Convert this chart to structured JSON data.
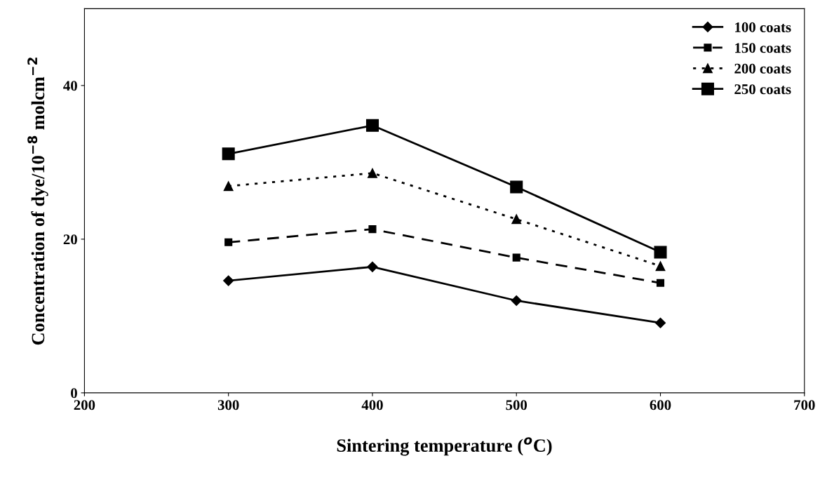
{
  "chart_data": {
    "type": "line",
    "xlabel": "Sintering temperature ($^{o}$C)",
    "ylabel": "Concentration of dye/10$^{−8}$ molcm$^{−2}$",
    "x": [
      300,
      400,
      500,
      600
    ],
    "xlim": [
      200,
      700
    ],
    "xticks": [
      200,
      300,
      400,
      500,
      600,
      700
    ],
    "ylim": [
      0,
      50
    ],
    "yticks": [
      0,
      20,
      40
    ],
    "grid": false,
    "legend": "top right",
    "series": [
      {
        "name": "100 coats",
        "color": "#000000",
        "marker": "diamond",
        "line_style": "solid",
        "values": [
          14.6,
          16.4,
          12.0,
          9.1
        ]
      },
      {
        "name": "150 coats",
        "color": "#000000",
        "marker": "square",
        "line_style": "dashed",
        "values": [
          19.6,
          21.3,
          17.6,
          14.3
        ]
      },
      {
        "name": "200 coats",
        "color": "#000000",
        "marker": "triangle",
        "line_style": "dotted",
        "values": [
          26.9,
          28.6,
          22.6,
          16.5
        ]
      },
      {
        "name": "250 coats",
        "color": "#000000",
        "marker": "square",
        "line_style": "solid",
        "values": [
          31.1,
          34.8,
          26.8,
          18.3
        ]
      }
    ]
  }
}
